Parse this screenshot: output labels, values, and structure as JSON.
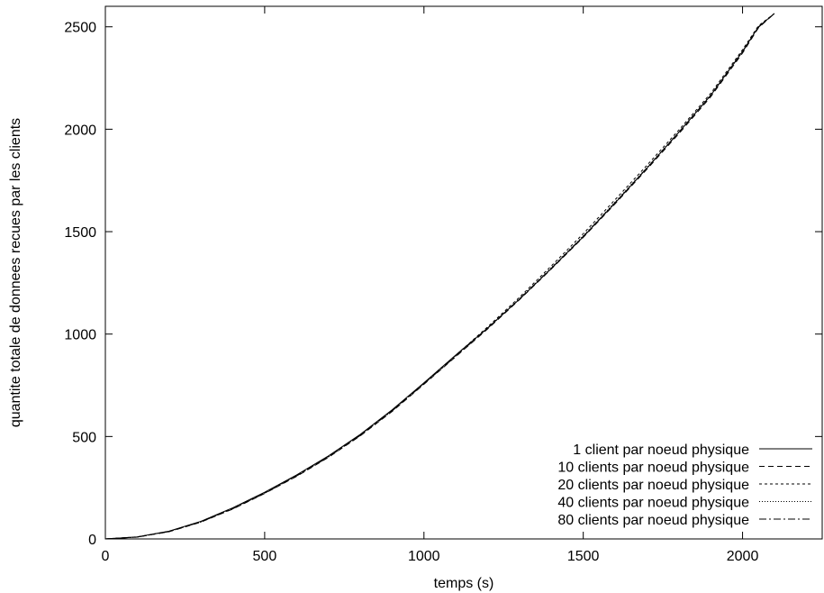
{
  "chart_data": {
    "type": "line",
    "title": "",
    "xlabel": "temps (s)",
    "ylabel": "quantite totale de donnees recues par les clients",
    "xlim": [
      0,
      2250
    ],
    "ylim": [
      0,
      2600
    ],
    "xticks": [
      0,
      500,
      1000,
      1500,
      2000
    ],
    "yticks": [
      0,
      500,
      1000,
      1500,
      2000,
      2500
    ],
    "grid": false,
    "legend_position": "bottom-right",
    "x": [
      0,
      100,
      200,
      300,
      400,
      500,
      600,
      700,
      800,
      900,
      1000,
      1100,
      1200,
      1300,
      1400,
      1500,
      1600,
      1700,
      1800,
      1900,
      2000,
      2050,
      2100
    ],
    "series": [
      {
        "name": "1 client par noeud physique",
        "dash": "none",
        "values": [
          0,
          10,
          38,
          86,
          152,
          228,
          312,
          405,
          510,
          630,
          762,
          898,
          1030,
          1170,
          1320,
          1475,
          1640,
          1810,
          1985,
          2165,
          2380,
          2500,
          2565
        ]
      },
      {
        "name": "10 clients par noeud physique",
        "dash": "6 4",
        "values": [
          0,
          9,
          35,
          82,
          146,
          222,
          305,
          398,
          503,
          622,
          755,
          890,
          1025,
          1168,
          1318,
          1472,
          1636,
          1805,
          1978,
          2158,
          2372,
          2495,
          2565
        ]
      },
      {
        "name": "20 clients par noeud physique",
        "dash": "3 3",
        "values": [
          0,
          10,
          37,
          85,
          150,
          226,
          310,
          403,
          508,
          628,
          760,
          897,
          1035,
          1180,
          1333,
          1490,
          1656,
          1824,
          1996,
          2175,
          2388,
          2505,
          2565
        ]
      },
      {
        "name": "40 clients par noeud physique",
        "dash": "1 2",
        "values": [
          0,
          9,
          36,
          84,
          148,
          224,
          308,
          401,
          506,
          626,
          758,
          894,
          1030,
          1174,
          1325,
          1480,
          1645,
          1814,
          1988,
          2168,
          2382,
          2500,
          2565
        ]
      },
      {
        "name": "80 clients par noeud physique",
        "dash": "8 3 2 3",
        "values": [
          0,
          9,
          36,
          83,
          147,
          223,
          307,
          400,
          505,
          625,
          757,
          892,
          1028,
          1172,
          1322,
          1477,
          1642,
          1811,
          1985,
          2165,
          2378,
          2498,
          2565
        ]
      }
    ]
  }
}
